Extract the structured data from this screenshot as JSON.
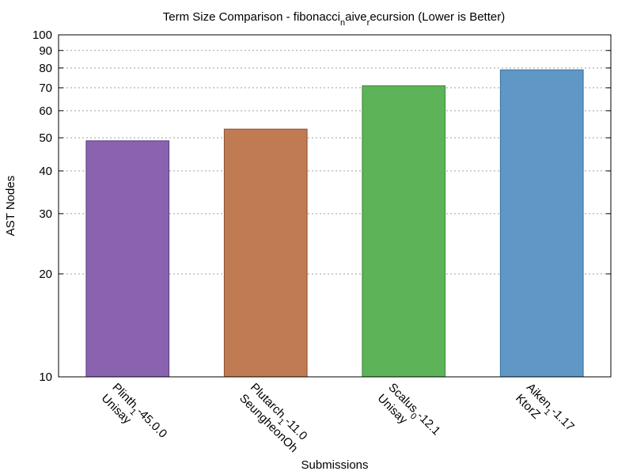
{
  "chart_data": {
    "type": "bar",
    "title": "Term Size Comparison - fibonacci",
    "title_parts": [
      {
        "text": "Term Size Comparison - fibonacci",
        "sub": false
      },
      {
        "text": "n",
        "sub": true
      },
      {
        "text": "aive",
        "sub": false
      },
      {
        "text": "r",
        "sub": true
      },
      {
        "text": "ecursion (Lower is Better)",
        "sub": false
      }
    ],
    "xlabel": "Submissions",
    "ylabel": "AST Nodes",
    "yscale": "log",
    "ylim": [
      10,
      100
    ],
    "yticks": [
      10,
      20,
      30,
      40,
      50,
      60,
      70,
      80,
      90,
      100
    ],
    "grid": true,
    "categories": [
      {
        "lines": [
          [
            {
              "text": "Plinth",
              "sub": false
            },
            {
              "text": "1",
              "sub": true
            },
            {
              "text": "-45.0.0",
              "sub": false
            }
          ],
          [
            {
              "text": "Unisay",
              "sub": false
            }
          ]
        ]
      },
      {
        "lines": [
          [
            {
              "text": "Plutarch",
              "sub": false
            },
            {
              "text": "1",
              "sub": true
            },
            {
              "text": "-11.0",
              "sub": false
            }
          ],
          [
            {
              "text": "SeungheonOh",
              "sub": false
            }
          ]
        ]
      },
      {
        "lines": [
          [
            {
              "text": "Scalus",
              "sub": false
            },
            {
              "text": "0",
              "sub": true
            },
            {
              "text": "-12.1",
              "sub": false
            }
          ],
          [
            {
              "text": "Unisay",
              "sub": false
            }
          ]
        ]
      },
      {
        "lines": [
          [
            {
              "text": "Aiken",
              "sub": false
            },
            {
              "text": "1",
              "sub": true
            },
            {
              "text": "-1.17",
              "sub": false
            }
          ],
          [
            {
              "text": "KtorZ",
              "sub": false
            }
          ]
        ]
      }
    ],
    "values": [
      49,
      53,
      71,
      79
    ],
    "colors": [
      "#8a63b0",
      "#c07b52",
      "#5db358",
      "#5f97c6"
    ],
    "stroke_colors": [
      "#5a3d80",
      "#8a5030",
      "#3a8a36",
      "#3a6e9a"
    ]
  }
}
